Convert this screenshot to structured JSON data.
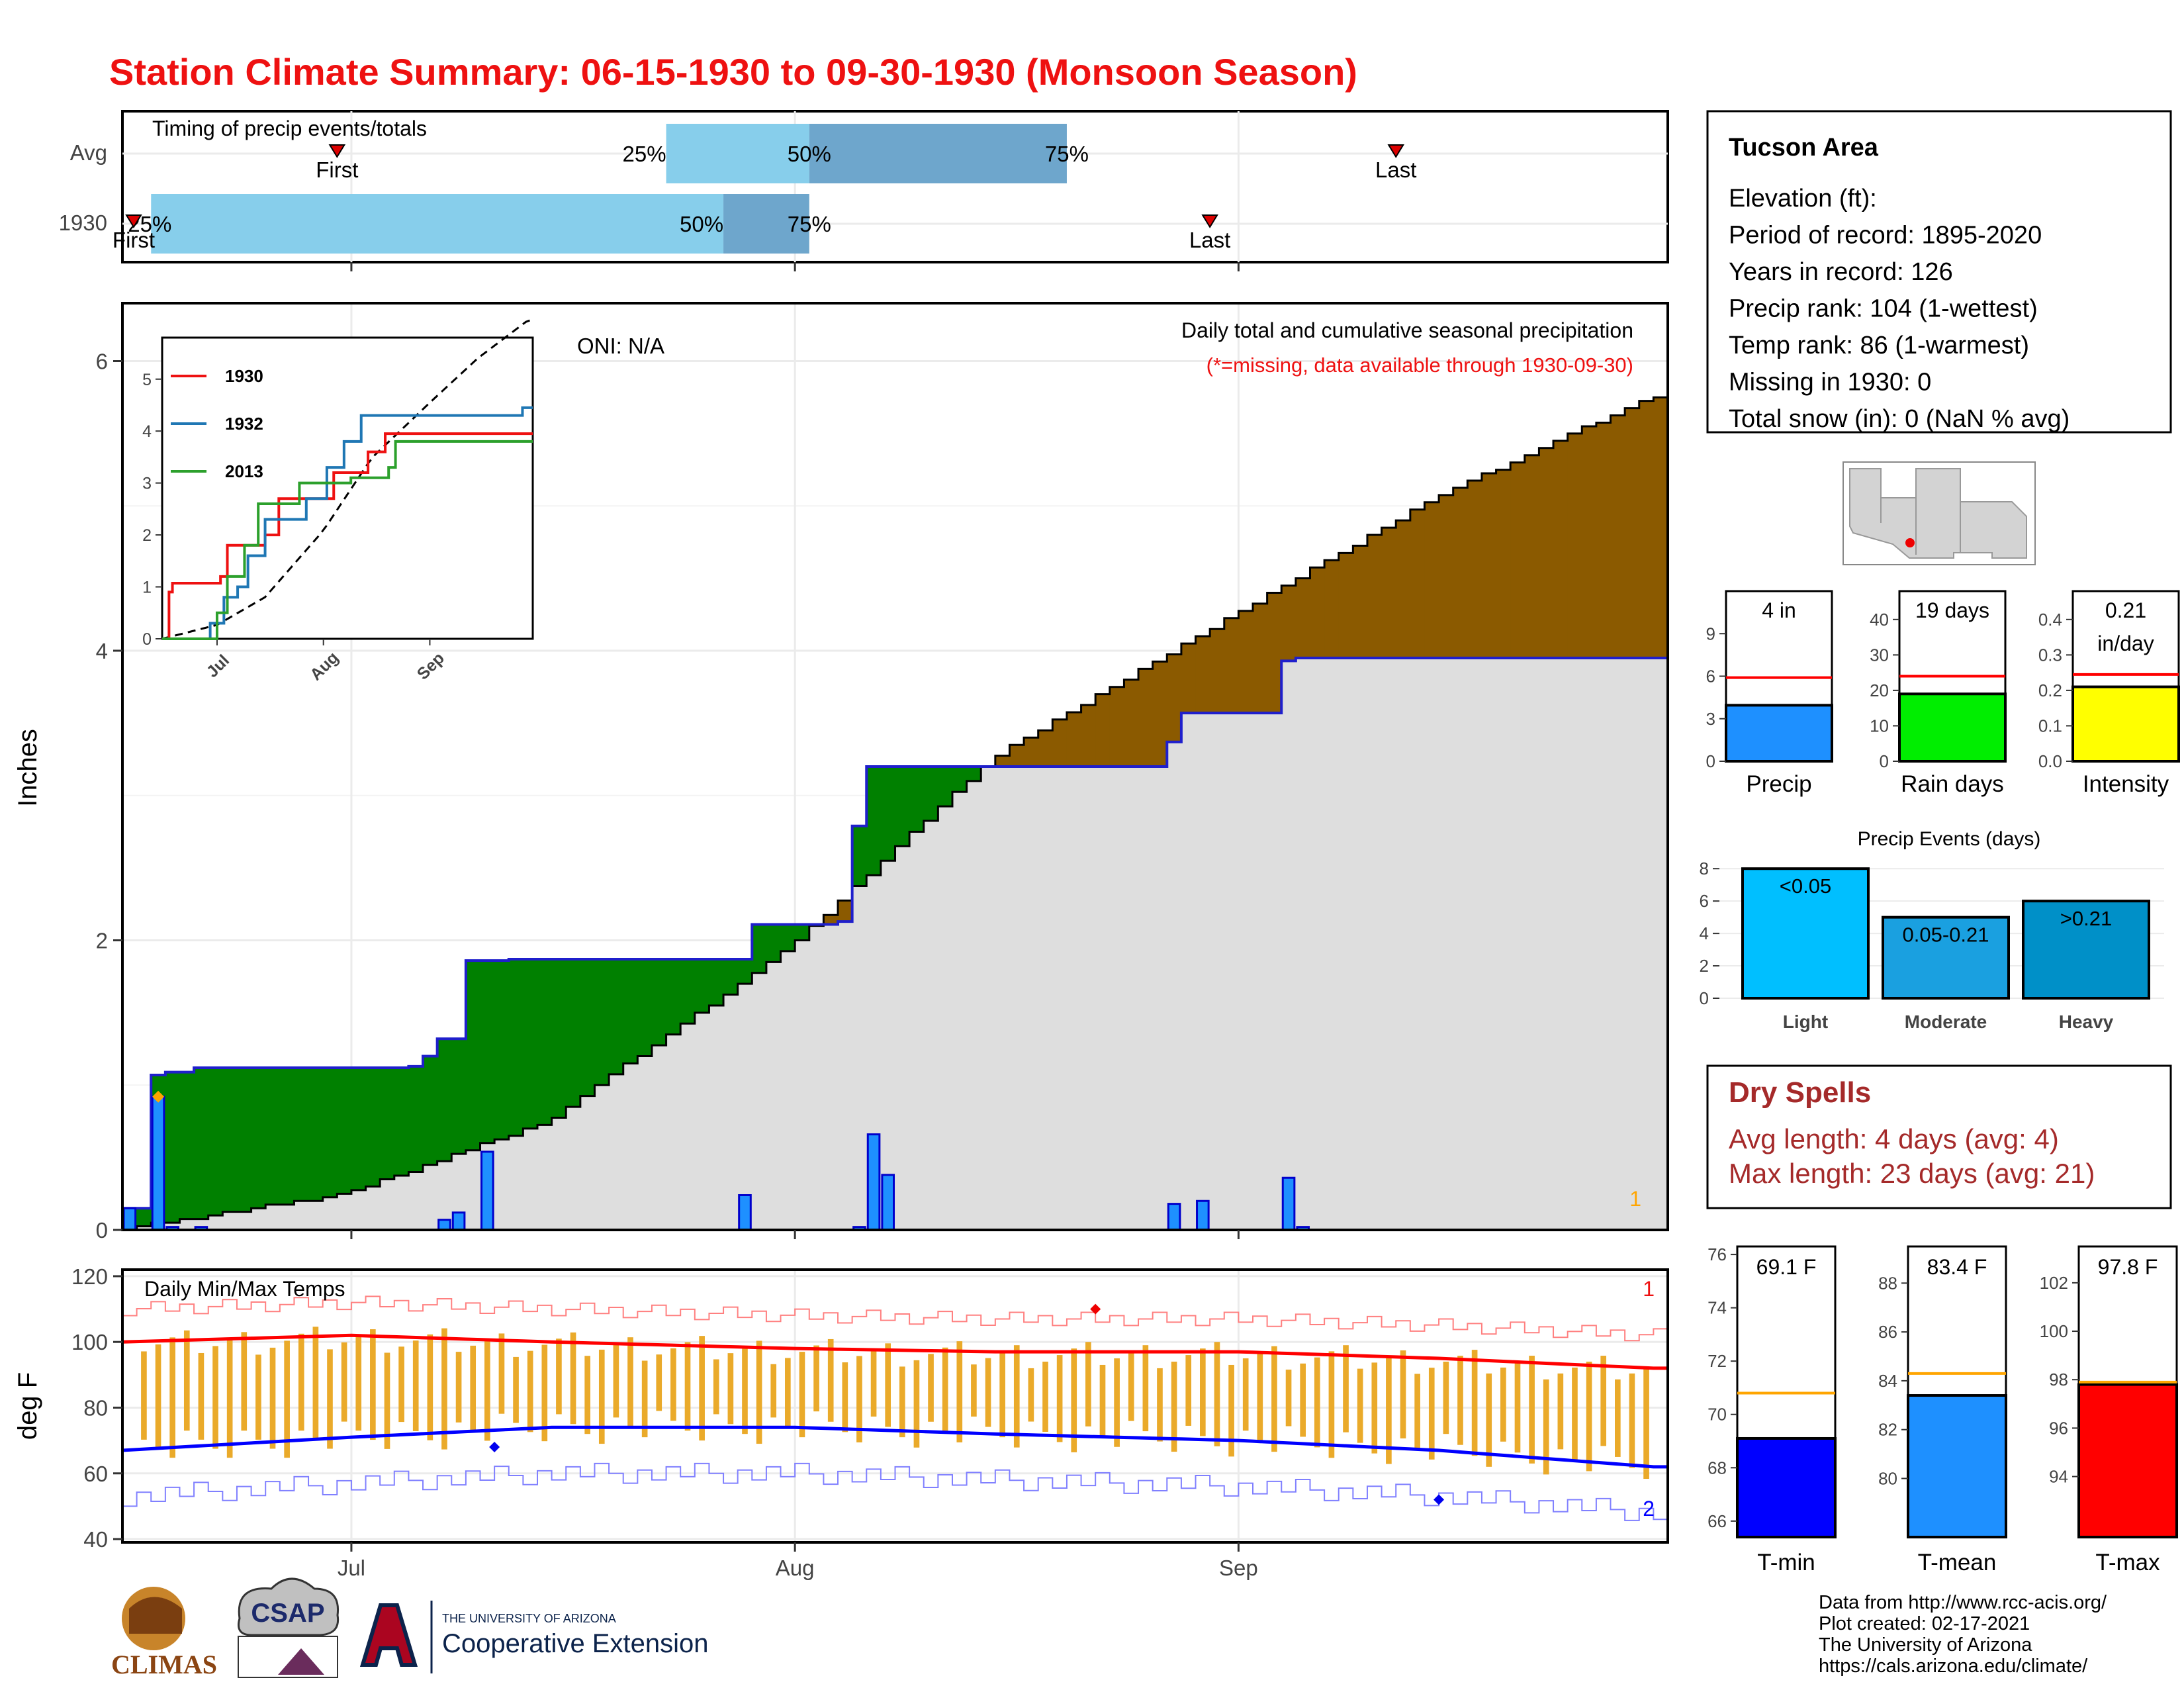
{
  "title": "Station Climate Summary: 06-15-1930 to 09-30-1930 (Monsoon Season)",
  "colors": {
    "title": "#ee1111",
    "avg_bar": "#87ceeb",
    "avg_bar_dark": "#6ea6cc",
    "wet": "#008000",
    "dry": "#8b5a00",
    "normal_area": "#dedede",
    "cum_line": "#1f1fcc",
    "daily_bar": "#1e90ff",
    "tmax": "#ff0000",
    "tmin": "#0000ff",
    "range_bar": "#eaaa2a",
    "precip_box": "#1e90ff",
    "raindays_box": "#00ee00",
    "intensity_box": "#ffff00",
    "light": "#00bfff",
    "moderate": "#1aa0e0",
    "heavy": "#0090c8",
    "dry_spell_text": "#a52a2a",
    "tmean_box": "#1e90ff",
    "avg_line": "#ffa500"
  },
  "timing_panel": {
    "label": "Timing of precip events/totals",
    "rows": [
      {
        "name": "Avg",
        "first_doy": "06-30",
        "last_doy": "09-12",
        "p25_date": "07-23",
        "p50_date": "08-02",
        "p75_date": "08-20",
        "labels": {
          "first": "First",
          "last": "Last",
          "p25": "25%",
          "p50": "50%",
          "p75": "75%"
        }
      },
      {
        "name": "1930",
        "first_doy": "06-15",
        "last_doy": "08-30",
        "p25_date": "06-17",
        "p50_date": "07-27",
        "p75_date": "08-02",
        "labels": {
          "first": "First",
          "last": "Last",
          "p25": "25%",
          "p50": "50%",
          "p75": "75%"
        }
      }
    ]
  },
  "main_panel": {
    "ylabel": "Inches",
    "caption": "Daily total and cumulative seasonal precipitation",
    "missing_note": "(*=missing, data available through 1930-09-30)",
    "oni": "ONI: N/A",
    "corner_count": "1",
    "x_ticks": [
      "Jul",
      "Aug",
      "Sep"
    ]
  },
  "inset": {
    "legend": [
      "1930",
      "1932",
      "2013"
    ],
    "legend_colors": [
      "#ee1111",
      "#1f77b4",
      "#2ca02c"
    ],
    "y_ticks": [
      "0",
      "1",
      "2",
      "3",
      "4",
      "5"
    ],
    "x_ticks": [
      "Jul",
      "Aug",
      "Sep"
    ]
  },
  "temp_panel": {
    "ylabel": "deg F",
    "label": "Daily Min/Max Temps",
    "y_ticks": [
      "40",
      "60",
      "80",
      "100",
      "120"
    ],
    "x_ticks": [
      "Jul",
      "Aug",
      "Sep"
    ],
    "count_max": "1",
    "count_min": "2"
  },
  "info_box": {
    "station": "Tucson Area",
    "lines": [
      "Elevation (ft):",
      "Period of record: 1895-2020",
      "Years in record: 126",
      "Precip rank: 104 (1-wettest)",
      "Temp rank: 86 (1-warmest)",
      "Missing in 1930: 0",
      "Total snow (in): 0 (NaN % avg)"
    ]
  },
  "stat_boxes": [
    {
      "name": "Precip",
      "label": "4 in",
      "value": 3.95,
      "avg": 5.9,
      "ymax": 12,
      "ticks": [
        "0",
        "3",
        "6",
        "9"
      ]
    },
    {
      "name": "Rain days",
      "label": "19 days",
      "value": 19,
      "avg": 24,
      "ymax": 48,
      "ticks": [
        "0",
        "10",
        "20",
        "30",
        "40"
      ]
    },
    {
      "name": "Intensity",
      "label": "0.21",
      "label2": "in/day",
      "value": 0.21,
      "avg": 0.245,
      "ymax": 0.48,
      "ticks": [
        "0.0",
        "0.1",
        "0.2",
        "0.3",
        "0.4"
      ]
    }
  ],
  "precip_events": {
    "title": "Precip Events (days)",
    "categories": [
      "Light",
      "Moderate",
      "Heavy"
    ],
    "labels": [
      "<0.05",
      "0.05-0.21",
      ">0.21"
    ],
    "values": [
      8,
      5,
      6
    ],
    "ticks": [
      "0",
      "2",
      "4",
      "6",
      "8"
    ]
  },
  "dry_spells": {
    "title": "Dry Spells",
    "avg": "Avg length: 4 days (avg: 4)",
    "max": "Max length: 23 days (avg: 21)"
  },
  "temp_boxes": [
    {
      "name": "T-min",
      "label": "69.1 F",
      "value": 69.1,
      "avg": 70.8,
      "ymin": 65.4,
      "ymax": 76.3,
      "ticks": [
        "66",
        "68",
        "70",
        "72",
        "74",
        "76"
      ]
    },
    {
      "name": "T-mean",
      "label": "83.4 F",
      "value": 83.4,
      "avg": 84.3,
      "ymin": 77.6,
      "ymax": 89.5,
      "ticks": [
        "80",
        "82",
        "84",
        "86",
        "88"
      ]
    },
    {
      "name": "T-max",
      "label": "97.8 F",
      "value": 97.8,
      "avg": 97.9,
      "ymin": 91.5,
      "ymax": 103.5,
      "ticks": [
        "94",
        "96",
        "98",
        "100",
        "102"
      ]
    }
  ],
  "footer": [
    "Data from http://www.rcc-acis.org/",
    "Plot created: 02-17-2021",
    "The University of Arizona",
    "https://cals.arizona.edu/climate/"
  ],
  "logos": {
    "climas": "CLIMAS",
    "csap": "CSAP",
    "ua_small": "THE UNIVERSITY OF ARIZONA",
    "ua_big": "Cooperative Extension"
  },
  "chart_data": [
    {
      "type": "area",
      "title": "Daily total and cumulative seasonal precipitation",
      "ylabel": "Inches",
      "ylim": [
        0,
        6.4
      ],
      "x_range": [
        "1930-06-15",
        "1930-09-30"
      ],
      "cumulative_1930_steps": [
        [
          "06-15",
          0.15
        ],
        [
          "06-17",
          1.07
        ],
        [
          "06-18",
          1.09
        ],
        [
          "06-20",
          1.12
        ],
        [
          "07-05",
          1.13
        ],
        [
          "07-06",
          1.2
        ],
        [
          "07-07",
          1.32
        ],
        [
          "07-09",
          1.86
        ],
        [
          "07-12",
          1.87
        ],
        [
          "07-28",
          1.87
        ],
        [
          "07-29",
          2.11
        ],
        [
          "08-04",
          2.13
        ],
        [
          "08-05",
          2.79
        ],
        [
          "08-06",
          3.2
        ],
        [
          "08-08",
          3.2
        ],
        [
          "08-16",
          3.2
        ],
        [
          "08-24",
          3.2
        ],
        [
          "08-27",
          3.37
        ],
        [
          "08-28",
          3.57
        ],
        [
          "09-03",
          3.57
        ],
        [
          "09-04",
          3.93
        ],
        [
          "09-05",
          3.95
        ],
        [
          "09-30",
          3.95
        ]
      ],
      "daily_precip": [
        [
          "06-15",
          0.15
        ],
        [
          "06-17",
          0.92
        ],
        [
          "06-18",
          0.02
        ],
        [
          "06-20",
          0.02
        ],
        [
          "07-07",
          0.07
        ],
        [
          "07-08",
          0.12
        ],
        [
          "07-10",
          0.54
        ],
        [
          "07-28",
          0.24
        ],
        [
          "08-05",
          0.02
        ],
        [
          "08-06",
          0.66
        ],
        [
          "08-07",
          0.38
        ],
        [
          "08-27",
          0.18
        ],
        [
          "08-29",
          0.2
        ],
        [
          "09-04",
          0.36
        ],
        [
          "09-05",
          0.02
        ]
      ],
      "normal_cumulative": [
        [
          "06-15",
          0.0
        ],
        [
          "07-01",
          0.25
        ],
        [
          "07-15",
          0.75
        ],
        [
          "08-01",
          1.95
        ],
        [
          "08-15",
          3.25
        ],
        [
          "09-01",
          4.25
        ],
        [
          "09-15",
          5.05
        ],
        [
          "09-30",
          5.75
        ]
      ]
    },
    {
      "type": "line",
      "title": "Daily Min/Max Temps",
      "ylabel": "deg F",
      "ylim": [
        40,
        120
      ],
      "series": [
        {
          "name": "avg max",
          "points": [
            [
              "06-15",
              100
            ],
            [
              "07-01",
              102
            ],
            [
              "07-15",
              100
            ],
            [
              "08-01",
              98
            ],
            [
              "08-15",
              97
            ],
            [
              "09-01",
              97
            ],
            [
              "09-15",
              95
            ],
            [
              "09-30",
              92
            ]
          ]
        },
        {
          "name": "avg min",
          "points": [
            [
              "06-15",
              67
            ],
            [
              "07-01",
              71
            ],
            [
              "07-15",
              74
            ],
            [
              "08-01",
              74
            ],
            [
              "08-15",
              72
            ],
            [
              "09-01",
              70
            ],
            [
              "09-15",
              67
            ],
            [
              "09-30",
              62
            ]
          ]
        }
      ]
    }
  ]
}
